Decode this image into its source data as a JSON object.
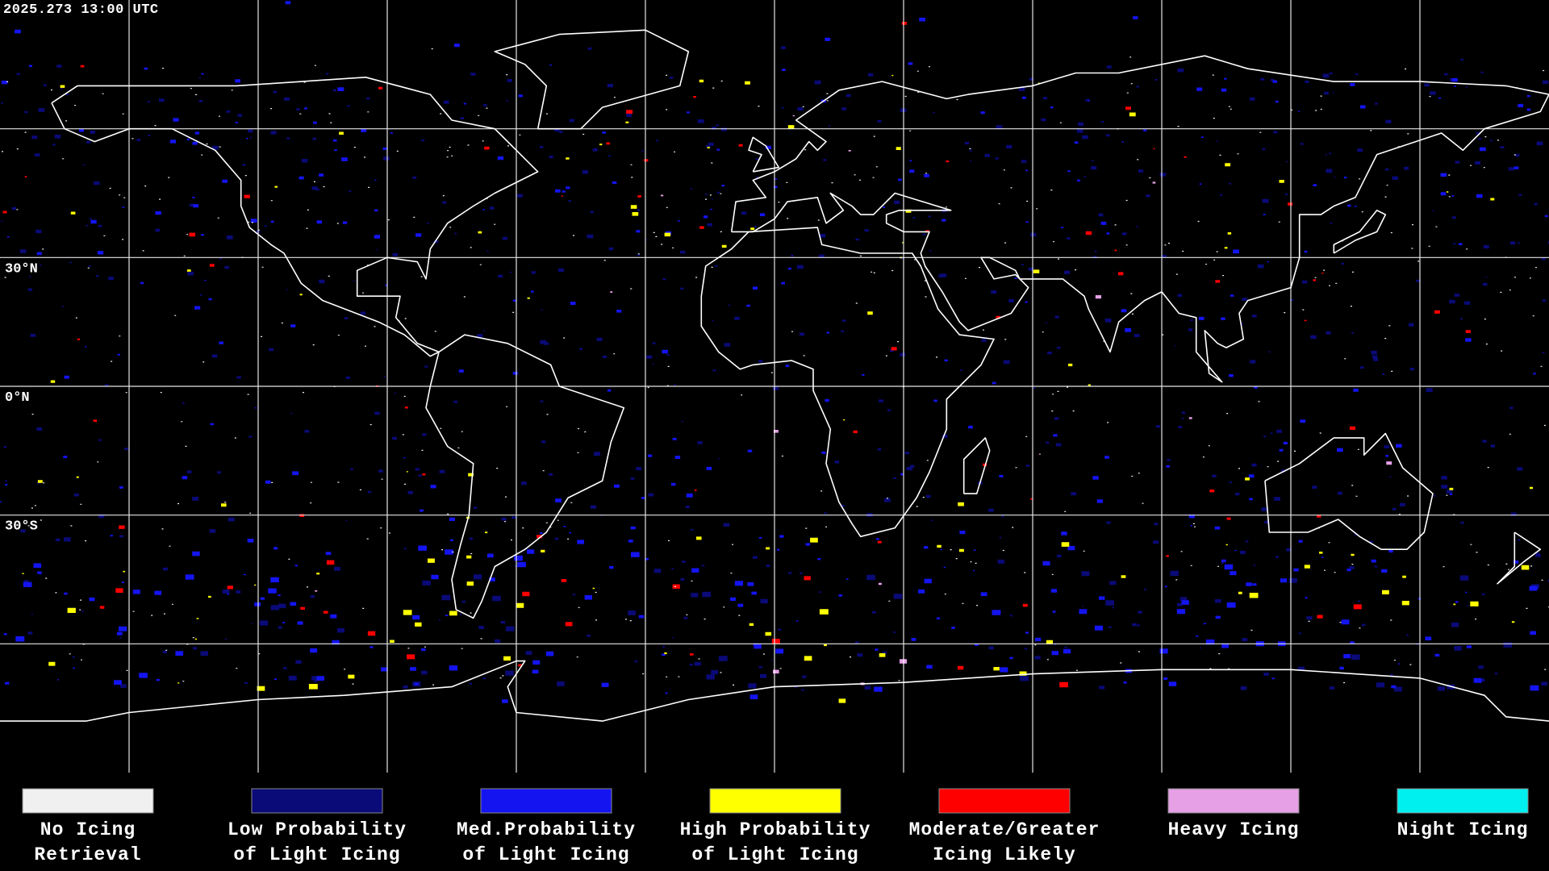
{
  "header": {
    "timestamp": "2025.273 13:00 UTC"
  },
  "map": {
    "latitude_labels": [
      "30°N",
      "0°N",
      "30°S"
    ]
  },
  "legend": {
    "items": [
      {
        "label_lines": [
          "No Icing",
          "Retrieval"
        ],
        "color": "#f0f0f0"
      },
      {
        "label_lines": [
          "Low Probability",
          "of Light Icing"
        ],
        "color": "#0a0a78"
      },
      {
        "label_lines": [
          "Med.Probability",
          "of Light Icing"
        ],
        "color": "#1414f0"
      },
      {
        "label_lines": [
          "High Probability",
          "of Light Icing"
        ],
        "color": "#ffff00"
      },
      {
        "label_lines": [
          "Moderate/Greater",
          "Icing Likely"
        ],
        "color": "#ff0000"
      },
      {
        "label_lines": [
          "Heavy Icing"
        ],
        "color": "#e6a0e6"
      },
      {
        "label_lines": [
          "Night Icing"
        ],
        "color": "#00f0f0"
      }
    ]
  }
}
